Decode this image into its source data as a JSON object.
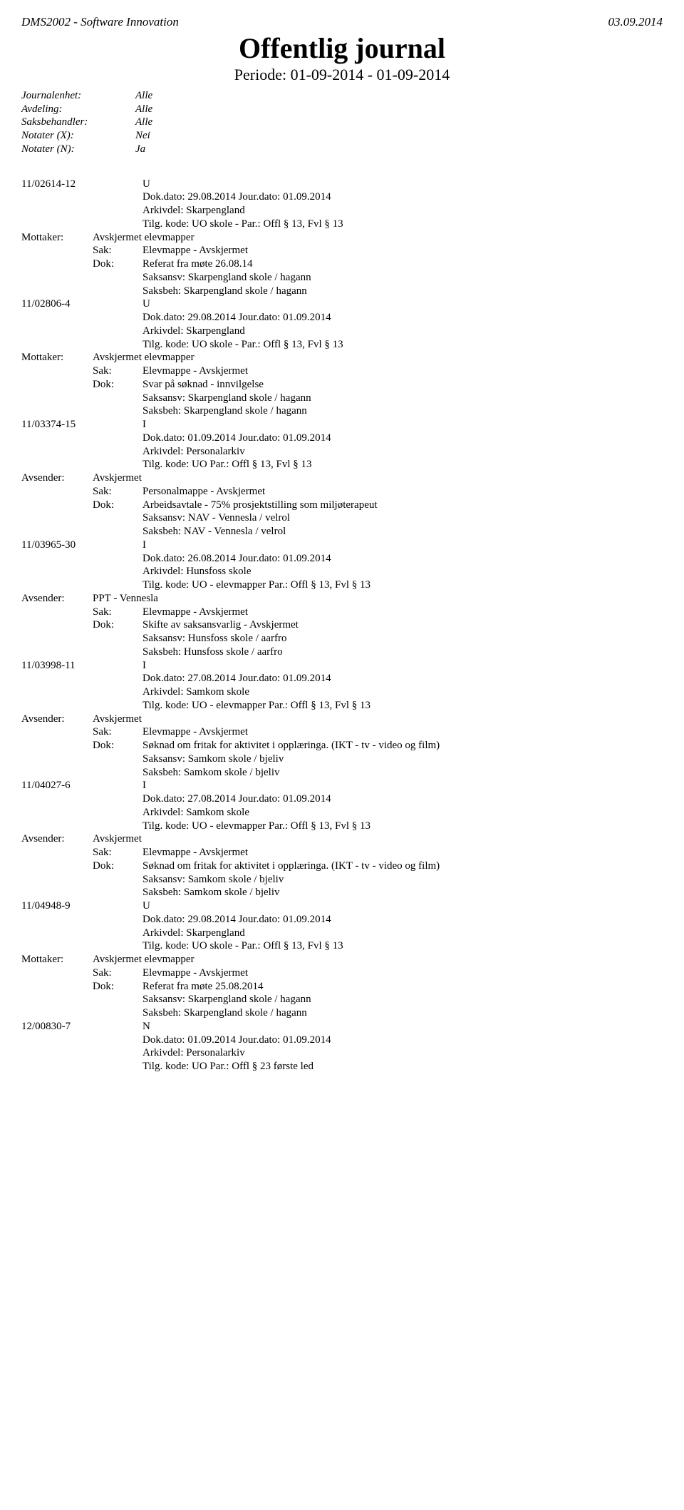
{
  "header": {
    "left": "DMS2002 - Software Innovation",
    "right": "03.09.2014"
  },
  "title": "Offentlig journal",
  "period": "Periode: 01-09-2014 - 01-09-2014",
  "meta": {
    "rows": [
      {
        "label": "Journalenhet:",
        "value": "Alle"
      },
      {
        "label": "Avdeling:",
        "value": "Alle"
      },
      {
        "label": "Saksbehandler:",
        "value": "Alle"
      },
      {
        "label": "Notater (X):",
        "value": "Nei"
      },
      {
        "label": "Notater (N):",
        "value": "Ja"
      }
    ]
  },
  "entries": [
    {
      "ref": "11/02614-12",
      "type": "U",
      "dokdato": "Dok.dato: 29.08.2014 Jour.dato:  01.09.2014",
      "arkivdel": "Arkivdel:    Skarpengland",
      "tilgkode": "Tilg. kode:  UO skole -  Par.: Offl § 13, Fvl § 13",
      "party_label": "Mottaker:",
      "party_value": "Avskjermet elevmapper",
      "sak": "Elevmappe - Avskjermet",
      "dok": "Referat fra møte 26.08.14",
      "ansv": "Saksansv: Skarpengland skole / hagann",
      "beh": "Saksbeh:  Skarpengland skole / hagann"
    },
    {
      "ref": "11/02806-4",
      "type": "U",
      "dokdato": "Dok.dato: 29.08.2014 Jour.dato:  01.09.2014",
      "arkivdel": "Arkivdel:    Skarpengland",
      "tilgkode": "Tilg. kode:  UO skole -  Par.: Offl § 13, Fvl § 13",
      "party_label": "Mottaker:",
      "party_value": "Avskjermet elevmapper",
      "sak": "Elevmappe - Avskjermet",
      "dok": "Svar på søknad - innvilgelse",
      "ansv": "Saksansv: Skarpengland skole / hagann",
      "beh": "Saksbeh:  Skarpengland skole / hagann"
    },
    {
      "ref": "11/03374-15",
      "type": "I",
      "dokdato": "Dok.dato: 01.09.2014 Jour.dato:  01.09.2014",
      "arkivdel": "Arkivdel:    Personalarkiv",
      "tilgkode": "Tilg. kode:  UO        Par.: Offl § 13, Fvl § 13",
      "party_label": "Avsender:",
      "party_value": "Avskjermet",
      "sak": "Personalmappe - Avskjermet",
      "dok": "Arbeidsavtale - 75% prosjektstilling som miljøterapeut",
      "ansv": "Saksansv: NAV - Vennesla / velrol",
      "beh": "Saksbeh:  NAV - Vennesla / velrol"
    },
    {
      "ref": "11/03965-30",
      "type": "I",
      "dokdato": "Dok.dato: 26.08.2014 Jour.dato:  01.09.2014",
      "arkivdel": "Arkivdel:    Hunsfoss skole",
      "tilgkode": "Tilg. kode:  UO - elevmapper Par.: Offl § 13, Fvl § 13",
      "party_label": "Avsender:",
      "party_value": "PPT - Vennesla",
      "sak": "Elevmappe - Avskjermet",
      "dok": "Skifte av saksansvarlig - Avskjermet",
      "ansv": "Saksansv: Hunsfoss skole / aarfro",
      "beh": "Saksbeh:  Hunsfoss skole / aarfro"
    },
    {
      "ref": "11/03998-11",
      "type": "I",
      "dokdato": "Dok.dato: 27.08.2014 Jour.dato:  01.09.2014",
      "arkivdel": "Arkivdel:    Samkom skole",
      "tilgkode": "Tilg. kode:  UO - elevmapper Par.: Offl § 13, Fvl § 13",
      "party_label": "Avsender:",
      "party_value": "Avskjermet",
      "sak": "Elevmappe - Avskjermet",
      "dok": "Søknad om fritak for aktivitet i opplæringa. (IKT - tv - video og film)",
      "ansv": "Saksansv: Samkom skole / bjeliv",
      "beh": "Saksbeh:  Samkom skole / bjeliv"
    },
    {
      "ref": "11/04027-6",
      "type": "I",
      "dokdato": "Dok.dato: 27.08.2014 Jour.dato:  01.09.2014",
      "arkivdel": "Arkivdel:    Samkom skole",
      "tilgkode": "Tilg. kode:  UO - elevmapper Par.: Offl § 13, Fvl § 13",
      "party_label": "Avsender:",
      "party_value": "Avskjermet",
      "sak": "Elevmappe - Avskjermet",
      "dok": "Søknad om fritak for aktivitet i opplæringa. (IKT - tv - video og film)",
      "ansv": "Saksansv: Samkom skole / bjeliv",
      "beh": "Saksbeh:  Samkom skole / bjeliv"
    },
    {
      "ref": "11/04948-9",
      "type": "U",
      "dokdato": "Dok.dato: 29.08.2014 Jour.dato:  01.09.2014",
      "arkivdel": "Arkivdel:    Skarpengland",
      "tilgkode": "Tilg. kode:  UO skole -  Par.: Offl § 13, Fvl § 13",
      "party_label": "Mottaker:",
      "party_value": "Avskjermet elevmapper",
      "sak": "Elevmappe - Avskjermet",
      "dok": "Referat fra møte 25.08.2014",
      "ansv": "Saksansv: Skarpengland skole / hagann",
      "beh": "Saksbeh:  Skarpengland skole / hagann"
    },
    {
      "ref": "12/00830-7",
      "type": "N",
      "dokdato": "Dok.dato: 01.09.2014 Jour.dato:  01.09.2014",
      "arkivdel": "Arkivdel:    Personalarkiv",
      "tilgkode": "Tilg. kode:  UO        Par.: Offl § 23 første led",
      "party_label": null,
      "party_value": null,
      "sak": null,
      "dok": null,
      "ansv": null,
      "beh": null
    }
  ],
  "labels": {
    "sak": "Sak:",
    "dok": "Dok:"
  }
}
